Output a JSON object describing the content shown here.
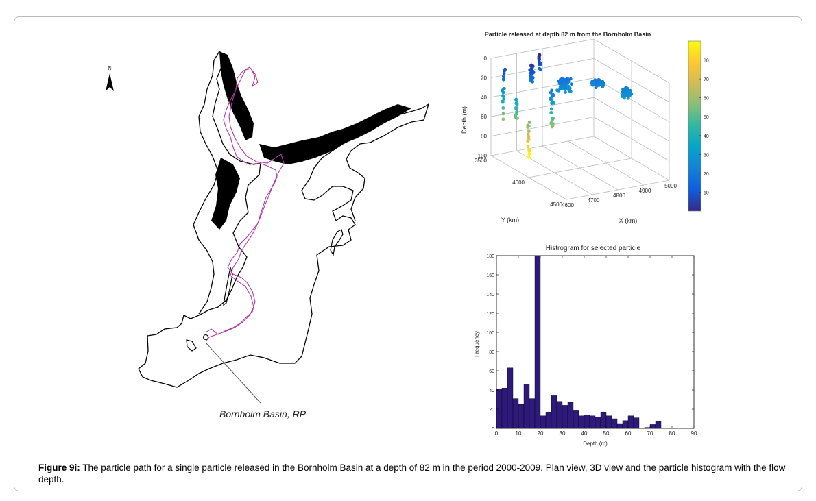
{
  "figure": {
    "caption_label": "Figure 9i:",
    "caption_text": " The particle path for a single particle released in the Bornholm Basin at a depth of 82 m in the period 2000-2009. Plan view, 3D view and the particle histogram with the flow depth."
  },
  "map": {
    "north_label": "N",
    "basin_label": "Bornholm Basin, RP",
    "coast_color": "#000000",
    "path_color": "#b03aa6",
    "north_icon": "north-arrow-icon"
  },
  "chart_data": [
    {
      "type": "scatter",
      "title": "Particle released at depth 82 m from the Bornholm Basin",
      "xlabel": "X (km)",
      "ylabel": "Y (km)",
      "zlabel": "Depth (m)",
      "x_ticks": [
        "4600",
        "4700",
        "4800",
        "4900",
        "5000"
      ],
      "y_ticks": [
        "3500",
        "4000",
        "4500"
      ],
      "z_ticks": [
        "0",
        "20",
        "40",
        "60",
        "80",
        "100"
      ],
      "xlim": [
        4600,
        5000
      ],
      "ylim": [
        3500,
        4500
      ],
      "zlim": [
        0,
        100
      ],
      "colorbar": {
        "ticks": [
          "10",
          "20",
          "30",
          "40",
          "50",
          "60",
          "70",
          "80"
        ],
        "range": [
          0,
          90
        ],
        "colormap": "parula"
      }
    },
    {
      "type": "bar",
      "title": "Histrogram for selected particle",
      "xlabel": "Depth (m)",
      "ylabel": "Frequency",
      "x_ticks": [
        "0",
        "10",
        "20",
        "30",
        "40",
        "50",
        "60",
        "70",
        "80",
        "90"
      ],
      "y_ticks": [
        "0",
        "20",
        "40",
        "60",
        "80",
        "100",
        "120",
        "140",
        "160",
        "180"
      ],
      "xlim": [
        0,
        90
      ],
      "ylim": [
        0,
        180
      ],
      "bin_width": 2.5,
      "bar_color": "#2e1a7a",
      "values": [
        41,
        42,
        63,
        31,
        25,
        46,
        31,
        180,
        13,
        17,
        34,
        28,
        24,
        27,
        19,
        13,
        14,
        13,
        12,
        17,
        13,
        10,
        5,
        8,
        13,
        11,
        0,
        1,
        4,
        7,
        0,
        0,
        0,
        0,
        0,
        0
      ]
    }
  ]
}
